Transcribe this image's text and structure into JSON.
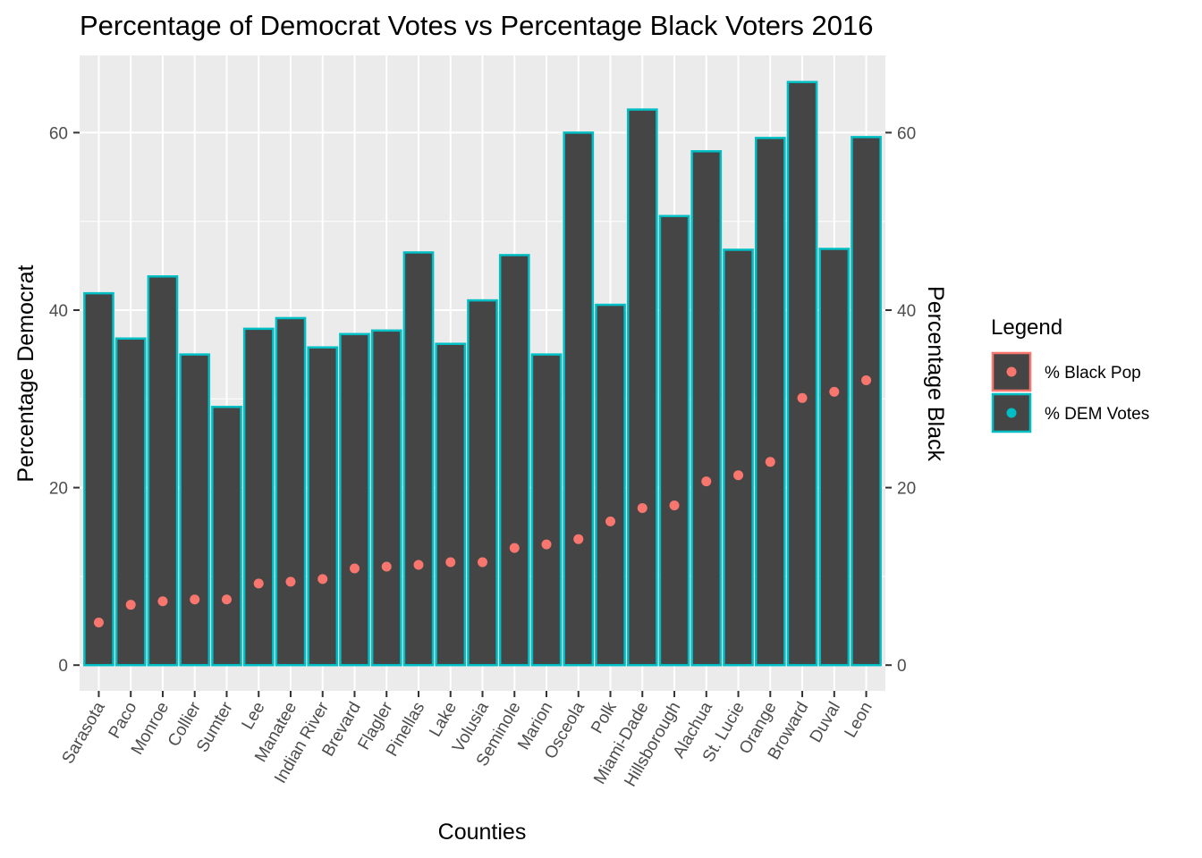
{
  "chart_data": {
    "type": "bar",
    "title": "Percentage of Democrat Votes vs Percentage Black Voters 2016",
    "xlabel": "Counties",
    "ylabel": "Percentage Democrat",
    "y2label": "Percentage Black",
    "ylim": [
      -2.9,
      68.7
    ],
    "yticks": [
      0,
      20,
      40,
      60
    ],
    "y2ticks": [
      0,
      20,
      40,
      60
    ],
    "grid": true,
    "legend": {
      "title": "Legend",
      "position": "right",
      "entries": [
        {
          "label": "% Black Pop",
          "color": "#F8766D"
        },
        {
          "label": "% DEM Votes",
          "color": "#00BFC4"
        }
      ]
    },
    "categories": [
      "Sarasota",
      "Paco",
      "Monroe",
      "Collier",
      "Sumter",
      "Lee",
      "Manatee",
      "Indian River",
      "Brevard",
      "Flagler",
      "Pinellas",
      "Lake",
      "Volusia",
      "Seminole",
      "Marion",
      "Osceola",
      "Polk",
      "Miami-Dade",
      "Hillsborough",
      "Alachua",
      "St. Lucie",
      "Orange",
      "Broward",
      "Duval",
      "Leon"
    ],
    "series": [
      {
        "name": "% DEM Votes",
        "type": "bar",
        "fill": "#454545",
        "outline": "#00BFC4",
        "values": [
          41.9,
          36.8,
          43.8,
          35.0,
          29.1,
          37.9,
          39.1,
          35.8,
          37.3,
          37.7,
          46.5,
          36.2,
          41.1,
          46.2,
          35.0,
          60.0,
          40.6,
          62.6,
          50.6,
          57.9,
          46.8,
          59.4,
          65.7,
          46.9,
          59.5
        ]
      },
      {
        "name": "% Black Pop",
        "type": "point",
        "color": "#F8766D",
        "values": [
          4.8,
          6.8,
          7.2,
          7.4,
          7.4,
          9.2,
          9.4,
          9.7,
          10.9,
          11.1,
          11.3,
          11.6,
          11.6,
          13.2,
          13.6,
          14.2,
          16.2,
          17.7,
          18.0,
          20.7,
          21.4,
          22.9,
          30.1,
          30.8,
          32.1
        ]
      }
    ]
  }
}
